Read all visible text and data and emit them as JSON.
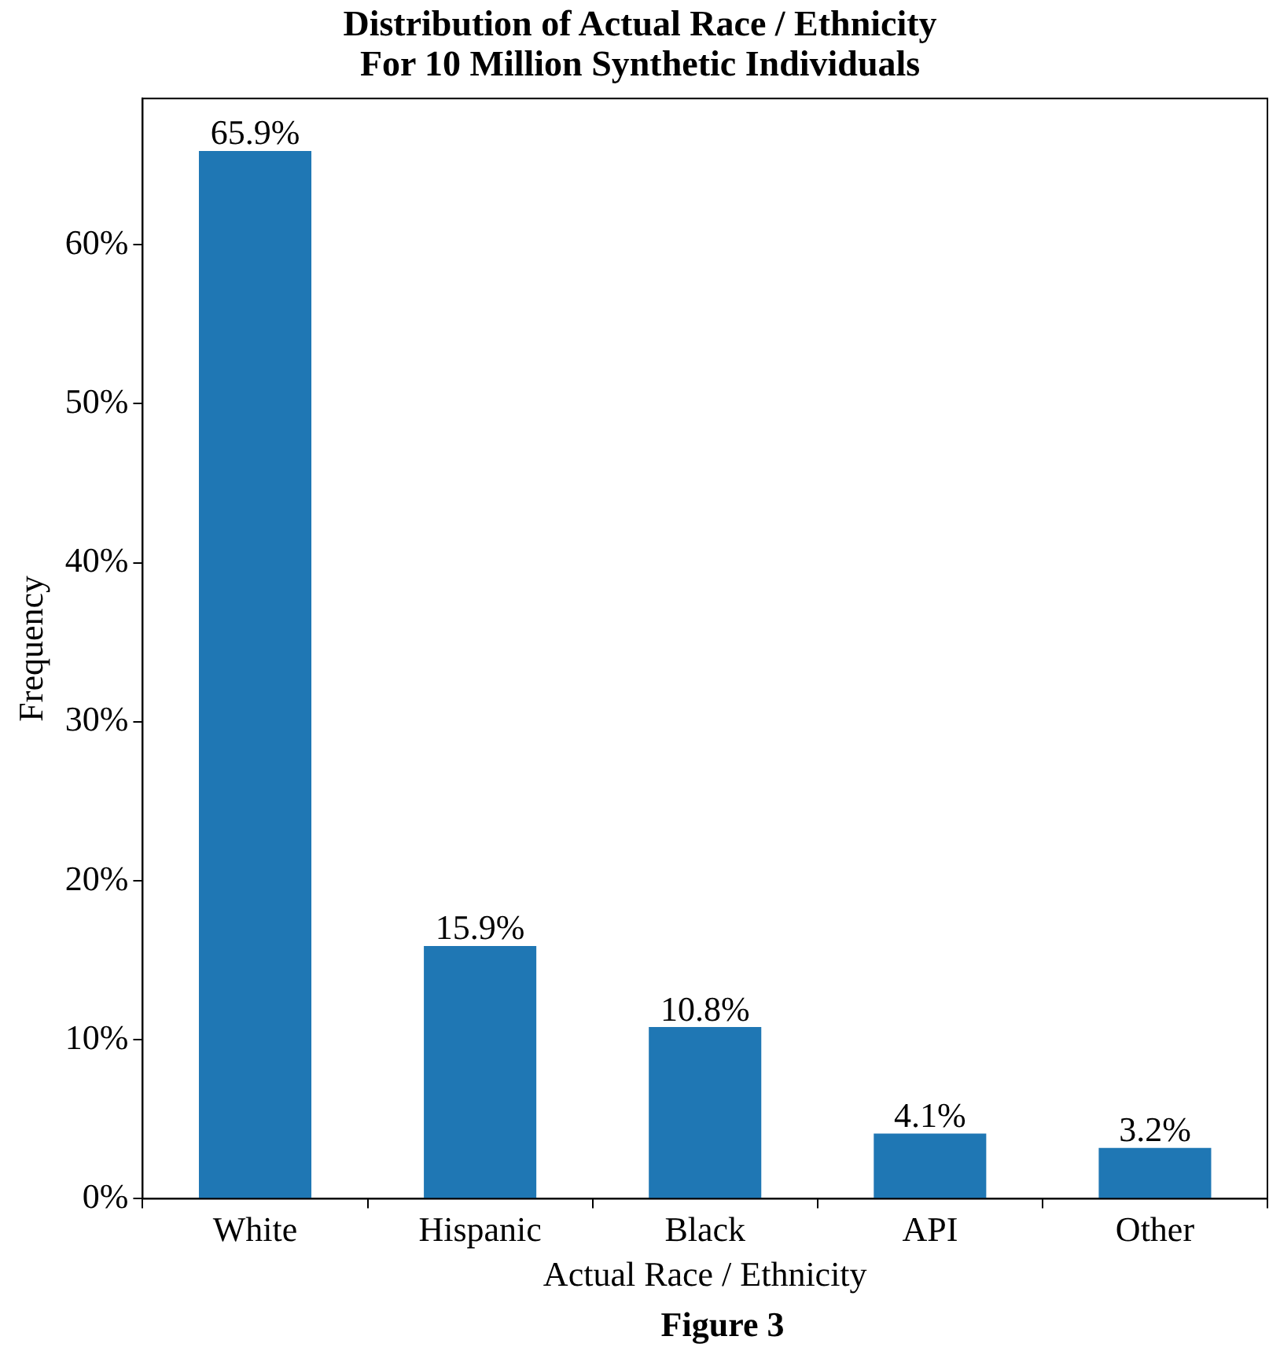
{
  "chart_data": {
    "type": "bar",
    "title": "Distribution of Actual Race / Ethnicity\nFor 10 Million Synthetic Individuals",
    "xlabel": "Actual Race / Ethnicity",
    "ylabel": "Frequency",
    "annotations": [
      "Figure 3"
    ],
    "categories": [
      "White",
      "Hispanic",
      "Black",
      "API",
      "Other"
    ],
    "values": [
      65.9,
      15.9,
      10.8,
      4.1,
      3.2
    ],
    "value_labels": [
      "65.9%",
      "15.9%",
      "10.8%",
      "4.1%",
      "3.2%"
    ],
    "color": "#1f77b4",
    "ylim": [
      0,
      69.2
    ],
    "yticks": [
      {
        "value": 0,
        "label": "0%"
      },
      {
        "value": 10,
        "label": "10%"
      },
      {
        "value": 20,
        "label": "20%"
      },
      {
        "value": 30,
        "label": "30%"
      },
      {
        "value": 40,
        "label": "40%"
      },
      {
        "value": 50,
        "label": "50%"
      },
      {
        "value": 60,
        "label": "60%"
      }
    ],
    "grid": false,
    "legend": false
  }
}
